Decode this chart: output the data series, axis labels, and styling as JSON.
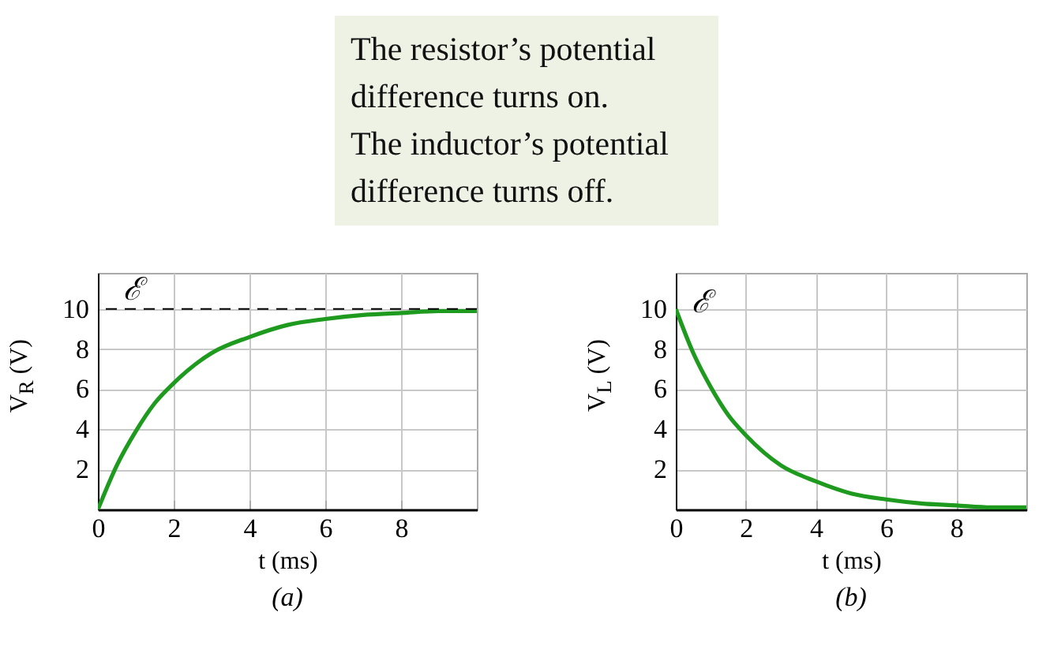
{
  "chart_data": [
    {
      "type": "other",
      "annotations": [
        "The resistor’s potential difference turns on.",
        "The inductor’s potential difference turns off."
      ]
    },
    {
      "type": "line",
      "xlabel": "t (ms)",
      "ylabel": "V$_{R}$ (V)",
      "x": [
        0,
        0.5,
        1,
        1.5,
        2,
        3,
        4,
        5,
        6,
        7,
        8,
        9,
        10
      ],
      "series": [
        {
          "color": "#1e9a1e",
          "values": [
            0,
            2.2,
            3.9,
            5.3,
            6.3,
            7.8,
            8.6,
            9.2,
            9.5,
            9.7,
            9.8,
            9.9,
            9.9
          ]
        }
      ],
      "xlim": [
        0,
        10
      ],
      "ylim": [
        0,
        11.8
      ],
      "xticks": [
        0,
        2,
        4,
        6,
        8
      ],
      "yticks": [
        2,
        4,
        6,
        8,
        10
      ],
      "grid": true,
      "ref_lines": [
        {
          "axis": "y",
          "value": 10,
          "label": "ℰ",
          "color": "#000000",
          "line_style": "dashed"
        }
      ],
      "annotations": [
        "(a)"
      ]
    },
    {
      "type": "line",
      "xlabel": "t (ms)",
      "ylabel": "V$_{L}$ (V)",
      "x": [
        0,
        0.5,
        1,
        1.5,
        2,
        3,
        4,
        5,
        6,
        7,
        8,
        9,
        10
      ],
      "series": [
        {
          "color": "#1e9a1e",
          "values": [
            10,
            7.8,
            6.1,
            4.7,
            3.7,
            2.2,
            1.4,
            0.8,
            0.5,
            0.3,
            0.2,
            0.1,
            0.1
          ]
        }
      ],
      "xlim": [
        0,
        10
      ],
      "ylim": [
        0,
        11.8
      ],
      "xticks": [
        0,
        2,
        4,
        6,
        8
      ],
      "yticks": [
        2,
        4,
        6,
        8,
        10
      ],
      "grid": true,
      "annotations": [
        {
          "text": "ℰ",
          "x": 0,
          "y": 10
        },
        "(b)"
      ]
    }
  ]
}
